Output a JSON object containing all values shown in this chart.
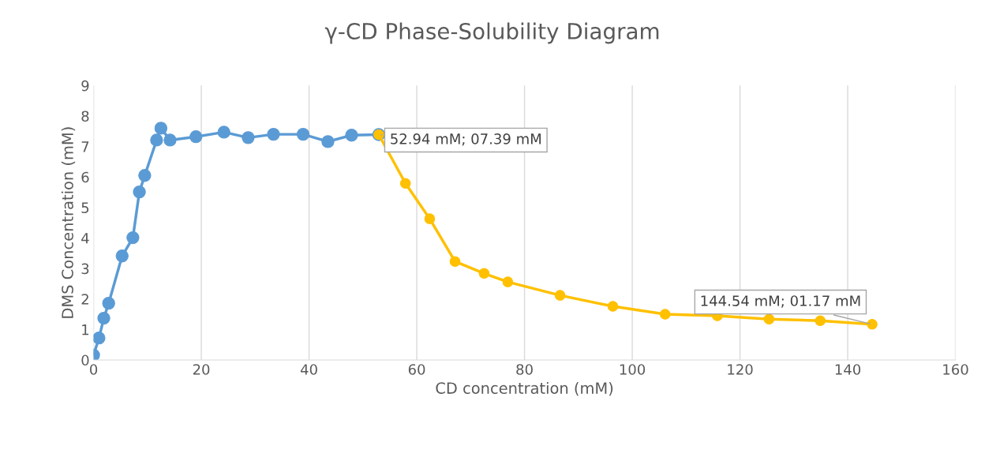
{
  "chart_data": {
    "type": "line",
    "title": "γ-CD Phase-Solubility Diagram",
    "xlabel": "CD concentration (mM)",
    "ylabel": "DMS Concentration (mM)",
    "series": [
      {
        "color": "#5b9bd5",
        "x": [
          0,
          1.0,
          1.9,
          2.8,
          5.3,
          7.3,
          8.5,
          9.5,
          11.7,
          12.5,
          14.2,
          19.0,
          24.2,
          28.7,
          33.4,
          38.9,
          43.5,
          47.9,
          52.94
        ],
        "values": [
          0.16,
          0.72,
          1.37,
          1.86,
          3.41,
          4.01,
          5.51,
          6.05,
          7.21,
          7.6,
          7.21,
          7.32,
          7.47,
          7.29,
          7.4,
          7.4,
          7.16,
          7.37,
          7.39
        ]
      },
      {
        "color": "#ffc000",
        "x": [
          52.94,
          57.9,
          62.4,
          67.1,
          72.5,
          76.9,
          86.6,
          96.4,
          106.1,
          115.8,
          125.4,
          134.9,
          144.54
        ],
        "values": [
          7.39,
          5.79,
          4.63,
          3.23,
          2.84,
          2.56,
          2.12,
          1.76,
          1.5,
          1.45,
          1.34,
          1.29,
          1.17
        ]
      }
    ],
    "xlim": [
      0,
      160
    ],
    "xticks": [
      0,
      20,
      40,
      60,
      80,
      100,
      120,
      140,
      160
    ],
    "ylim": [
      0,
      9
    ],
    "yticks": [
      0,
      1,
      2,
      3,
      4,
      5,
      6,
      7,
      8,
      9
    ],
    "grid": "x",
    "marker": "circle",
    "line_style": "solid",
    "legend": false,
    "annotations": [
      {
        "text": "52.94 mM; 07.39 mM",
        "x": 52.94,
        "y": 7.39
      },
      {
        "text": "144.54 mM; 01.17 mM",
        "x": 144.54,
        "y": 1.17
      }
    ]
  }
}
